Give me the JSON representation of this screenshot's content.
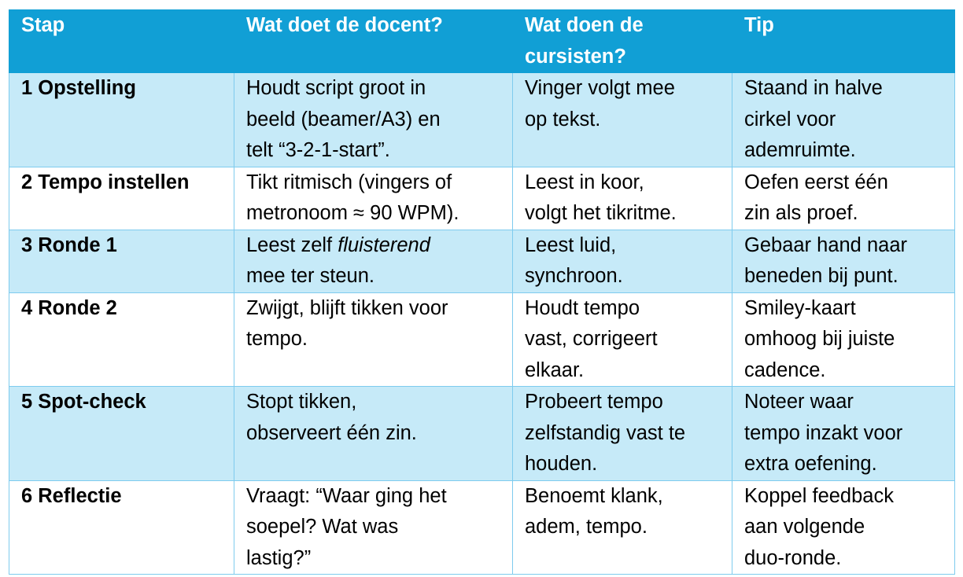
{
  "header": [
    "Stap",
    "Wat doet de docent?",
    "Wat doen de cursisten?",
    "Tip"
  ],
  "header_lines": [
    [
      "Stap"
    ],
    [
      "Wat doet de docent?"
    ],
    [
      "Wat doen de",
      "cursisten?"
    ],
    [
      "Tip"
    ]
  ],
  "colors": {
    "header_bg": "#119FD5",
    "alt_row_bg": "#C6EAF8",
    "border": "#7ECBEE"
  },
  "rows": [
    {
      "step": "1 Opstelling",
      "docent": [
        [
          {
            "t": "Houdt script groot in"
          }
        ],
        [
          {
            "t": "beeld (beamer/A3) en"
          }
        ],
        [
          {
            "t": "telt “3-2-1-start”."
          }
        ]
      ],
      "cursisten": [
        [
          {
            "t": "Vinger volgt mee"
          }
        ],
        [
          {
            "t": "op tekst."
          }
        ]
      ],
      "tip": [
        [
          {
            "t": "Staand in halve"
          }
        ],
        [
          {
            "t": "cirkel voor"
          }
        ],
        [
          {
            "t": "ademruimte."
          }
        ]
      ]
    },
    {
      "step": "2 Tempo instellen",
      "docent": [
        [
          {
            "t": "Tikt ritmisch (vingers of"
          }
        ],
        [
          {
            "t": "metronoom ≈ 90 WPM)."
          }
        ]
      ],
      "cursisten": [
        [
          {
            "t": "Leest in koor,"
          }
        ],
        [
          {
            "t": "volgt het tikritme."
          }
        ]
      ],
      "tip": [
        [
          {
            "t": "Oefen eerst één"
          }
        ],
        [
          {
            "t": "zin als proef."
          }
        ]
      ]
    },
    {
      "step": "3 Ronde 1",
      "docent": [
        [
          {
            "t": "Leest zelf "
          },
          {
            "t": "fluisterend",
            "i": true
          }
        ],
        [
          {
            "t": "mee ter steun."
          }
        ]
      ],
      "cursisten": [
        [
          {
            "t": "Leest luid,"
          }
        ],
        [
          {
            "t": "synchroon."
          }
        ]
      ],
      "tip": [
        [
          {
            "t": "Gebaar hand naar"
          }
        ],
        [
          {
            "t": "beneden bij punt."
          }
        ]
      ]
    },
    {
      "step": "4 Ronde 2",
      "docent": [
        [
          {
            "t": "Zwijgt, blijft tikken voor"
          }
        ],
        [
          {
            "t": "tempo."
          }
        ]
      ],
      "cursisten": [
        [
          {
            "t": "Houdt tempo"
          }
        ],
        [
          {
            "t": "vast, corrigeert"
          }
        ],
        [
          {
            "t": "elkaar."
          }
        ]
      ],
      "tip": [
        [
          {
            "t": "Smiley-kaart"
          }
        ],
        [
          {
            "t": "omhoog bij juiste"
          }
        ],
        [
          {
            "t": "cadence."
          }
        ]
      ]
    },
    {
      "step": "5 Spot-check",
      "docent": [
        [
          {
            "t": "Stopt tikken,"
          }
        ],
        [
          {
            "t": "observeert één zin."
          }
        ]
      ],
      "cursisten": [
        [
          {
            "t": "Probeert tempo"
          }
        ],
        [
          {
            "t": "zelfstandig vast te"
          }
        ],
        [
          {
            "t": "houden."
          }
        ]
      ],
      "tip": [
        [
          {
            "t": "Noteer waar"
          }
        ],
        [
          {
            "t": "tempo inzakt voor"
          }
        ],
        [
          {
            "t": "extra oefening."
          }
        ]
      ]
    },
    {
      "step": "6 Reflectie",
      "docent": [
        [
          {
            "t": "Vraagt: “Waar ging het"
          }
        ],
        [
          {
            "t": "soepel? Wat was"
          }
        ],
        [
          {
            "t": "lastig?”"
          }
        ]
      ],
      "cursisten": [
        [
          {
            "t": "Benoemt klank,"
          }
        ],
        [
          {
            "t": "adem, tempo."
          }
        ]
      ],
      "tip": [
        [
          {
            "t": "Koppel feedback"
          }
        ],
        [
          {
            "t": "aan volgende"
          }
        ],
        [
          {
            "t": "duo-ronde."
          }
        ]
      ]
    }
  ]
}
